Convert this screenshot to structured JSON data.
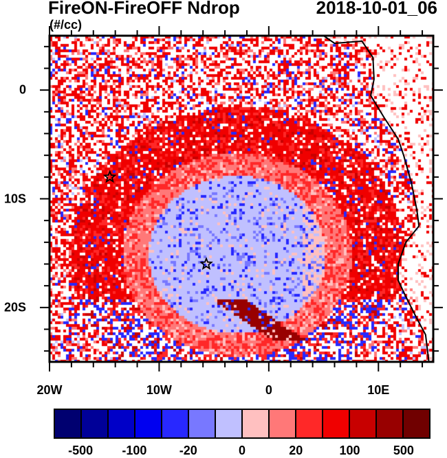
{
  "title": "FireON-FireOFF Ndrop",
  "date": "2018-10-01_06",
  "units": "(#/cc)",
  "map": {
    "lon_range": [
      -20,
      15
    ],
    "lat_range": [
      -25,
      5
    ],
    "x_ticks": [
      {
        "lon": -20,
        "label": "20W"
      },
      {
        "lon": -10,
        "label": "10W"
      },
      {
        "lon": 0,
        "label": "0"
      },
      {
        "lon": 10,
        "label": "10E"
      }
    ],
    "y_ticks": [
      {
        "lat": 0,
        "label": "0"
      },
      {
        "lat": -10,
        "label": "10S"
      },
      {
        "lat": -20,
        "label": "20S"
      }
    ],
    "markers": [
      {
        "type": "star",
        "lon": -14.5,
        "lat": -8
      },
      {
        "type": "star",
        "lon": -5.7,
        "lat": -16
      }
    ]
  },
  "colorbar": {
    "levels": [
      -500,
      -200,
      -100,
      -50,
      -20,
      -10,
      0,
      10,
      20,
      50,
      100,
      200,
      500
    ],
    "labels": [
      {
        "after_box": 1,
        "text": "-500"
      },
      {
        "after_box": 3,
        "text": "-100"
      },
      {
        "after_box": 5,
        "text": "-20"
      },
      {
        "after_box": 7,
        "text": "0"
      },
      {
        "after_box": 9,
        "text": "20"
      },
      {
        "after_box": 11,
        "text": "100"
      },
      {
        "after_box": 13,
        "text": "500"
      }
    ],
    "colors": [
      "#000070",
      "#000098",
      "#0000c8",
      "#0000f0",
      "#2828ff",
      "#7878ff",
      "#c0c0ff",
      "#ffc0c0",
      "#ff7878",
      "#ff2828",
      "#f00000",
      "#c80000",
      "#980000",
      "#700000"
    ]
  }
}
